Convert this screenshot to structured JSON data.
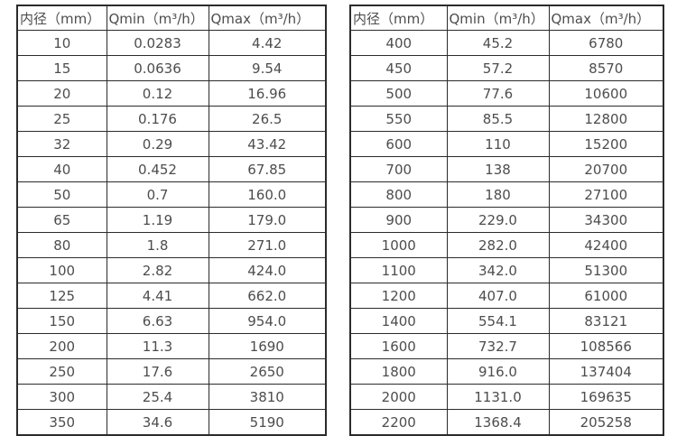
{
  "page": {
    "background_color": "#ffffff",
    "text_color": "#4d4d4d",
    "border_color": "#2b2b2b"
  },
  "tables": [
    {
      "title": "flow-rate-table-small-diameters",
      "columns": [
        "内径（mm）",
        "Qmin（m³/h）",
        "Qmax（m³/h）"
      ],
      "rows": [
        [
          "10",
          "0.0283",
          "4.42"
        ],
        [
          "15",
          "0.0636",
          "9.54"
        ],
        [
          "20",
          "0.12",
          "16.96"
        ],
        [
          "25",
          "0.176",
          "26.5"
        ],
        [
          "32",
          "0.29",
          "43.42"
        ],
        [
          "40",
          "0.452",
          "67.85"
        ],
        [
          "50",
          "0.7",
          "160.0"
        ],
        [
          "65",
          "1.19",
          "179.0"
        ],
        [
          "80",
          "1.8",
          "271.0"
        ],
        [
          "100",
          "2.82",
          "424.0"
        ],
        [
          "125",
          "4.41",
          "662.0"
        ],
        [
          "150",
          "6.63",
          "954.0"
        ],
        [
          "200",
          "11.3",
          "1690"
        ],
        [
          "250",
          "17.6",
          "2650"
        ],
        [
          "300",
          "25.4",
          "3810"
        ],
        [
          "350",
          "34.6",
          "5190"
        ]
      ]
    },
    {
      "title": "flow-rate-table-large-diameters",
      "columns": [
        "内径（mm）",
        "Qmin（m³/h）",
        "Qmax（m³/h）"
      ],
      "rows": [
        [
          "400",
          "45.2",
          "6780"
        ],
        [
          "450",
          "57.2",
          "8570"
        ],
        [
          "500",
          "77.6",
          "10600"
        ],
        [
          "550",
          "85.5",
          "12800"
        ],
        [
          "600",
          "110",
          "15200"
        ],
        [
          "700",
          "138",
          "20700"
        ],
        [
          "800",
          "180",
          "27100"
        ],
        [
          "900",
          "229.0",
          "34300"
        ],
        [
          "1000",
          "282.0",
          "42400"
        ],
        [
          "1100",
          "342.0",
          "51300"
        ],
        [
          "1200",
          "407.0",
          "61000"
        ],
        [
          "1400",
          "554.1",
          "83121"
        ],
        [
          "1600",
          "732.7",
          "108566"
        ],
        [
          "1800",
          "916.0",
          "137404"
        ],
        [
          "2000",
          "1131.0",
          "169635"
        ],
        [
          "2200",
          "1368.4",
          "205258"
        ]
      ]
    }
  ],
  "chart_data": [
    {
      "type": "table",
      "title": "",
      "columns": [
        "内径（mm）",
        "Qmin（m³/h）",
        "Qmax（m³/h）"
      ],
      "rows": [
        [
          10,
          0.0283,
          4.42
        ],
        [
          15,
          0.0636,
          9.54
        ],
        [
          20,
          0.12,
          16.96
        ],
        [
          25,
          0.176,
          26.5
        ],
        [
          32,
          0.29,
          43.42
        ],
        [
          40,
          0.452,
          67.85
        ],
        [
          50,
          0.7,
          160.0
        ],
        [
          65,
          1.19,
          179.0
        ],
        [
          80,
          1.8,
          271.0
        ],
        [
          100,
          2.82,
          424.0
        ],
        [
          125,
          4.41,
          662.0
        ],
        [
          150,
          6.63,
          954.0
        ],
        [
          200,
          11.3,
          1690
        ],
        [
          250,
          17.6,
          2650
        ],
        [
          300,
          25.4,
          3810
        ],
        [
          350,
          34.6,
          5190
        ]
      ]
    },
    {
      "type": "table",
      "title": "",
      "columns": [
        "内径（mm）",
        "Qmin（m³/h）",
        "Qmax（m³/h）"
      ],
      "rows": [
        [
          400,
          45.2,
          6780
        ],
        [
          450,
          57.2,
          8570
        ],
        [
          500,
          77.6,
          10600
        ],
        [
          550,
          85.5,
          12800
        ],
        [
          600,
          110,
          15200
        ],
        [
          700,
          138,
          20700
        ],
        [
          800,
          180,
          27100
        ],
        [
          900,
          229.0,
          34300
        ],
        [
          1000,
          282.0,
          42400
        ],
        [
          1100,
          342.0,
          51300
        ],
        [
          1200,
          407.0,
          61000
        ],
        [
          1400,
          554.1,
          83121
        ],
        [
          1600,
          732.7,
          108566
        ],
        [
          1800,
          916.0,
          137404
        ],
        [
          2000,
          1131.0,
          169635
        ],
        [
          2200,
          1368.4,
          205258
        ]
      ]
    }
  ]
}
